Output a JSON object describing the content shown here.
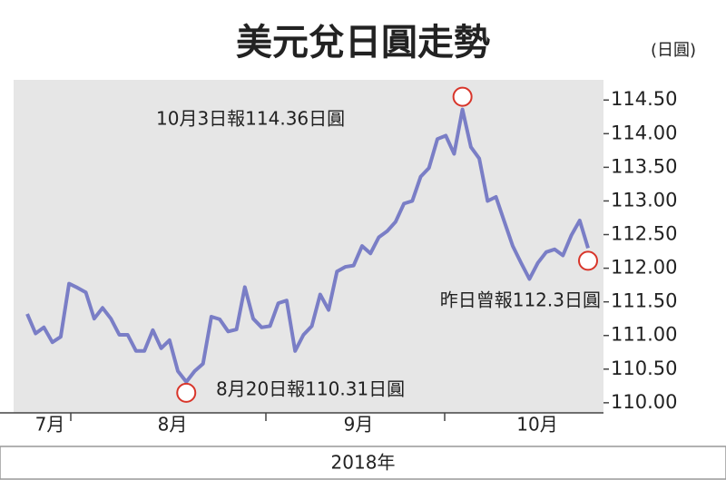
{
  "chart_data": {
    "type": "line",
    "title": "美元兌日圓走勢",
    "unit_label": "(日圓)",
    "x_label": "2018年",
    "month_labels": [
      "7月",
      "8月",
      "9月",
      "10月"
    ],
    "color": "#7a7ec6",
    "background": "#e6e6e6",
    "values": [
      111.32,
      111.03,
      111.12,
      110.9,
      110.98,
      111.77,
      111.71,
      111.64,
      111.25,
      111.41,
      111.25,
      111.01,
      111.01,
      110.77,
      110.77,
      111.08,
      110.81,
      110.93,
      110.47,
      110.31,
      110.47,
      110.58,
      111.28,
      111.24,
      111.06,
      111.09,
      111.72,
      111.25,
      111.12,
      111.14,
      111.48,
      111.52,
      110.77,
      111.01,
      111.14,
      111.61,
      111.38,
      111.95,
      112.02,
      112.04,
      112.33,
      112.22,
      112.46,
      112.55,
      112.69,
      112.96,
      113.0,
      113.36,
      113.49,
      113.92,
      113.97,
      113.7,
      114.36,
      113.8,
      113.63,
      113.0,
      113.06,
      112.69,
      112.33,
      112.08,
      111.84,
      112.08,
      112.24,
      112.28,
      112.19,
      112.49,
      112.71,
      112.3
    ],
    "annotations": [
      "8月20日報110.31日圓",
      "10月3日報114.36日圓",
      "昨日曾報112.3日圓"
    ],
    "ylim": [
      109.85,
      114.8
    ],
    "yticks": [
      {
        "value": 110,
        "label": "110.00"
      },
      {
        "value": 110.5,
        "label": "110.50"
      },
      {
        "value": 111,
        "label": "111.00"
      },
      {
        "value": 111.5,
        "label": "111.50"
      },
      {
        "value": 112,
        "label": "112.00"
      },
      {
        "value": 112.5,
        "label": "112.50"
      },
      {
        "value": 113,
        "label": "113.00"
      },
      {
        "value": 113.5,
        "label": "113.50"
      },
      {
        "value": 114,
        "label": "114.00"
      },
      {
        "value": 114.5,
        "label": "114.50"
      }
    ]
  }
}
